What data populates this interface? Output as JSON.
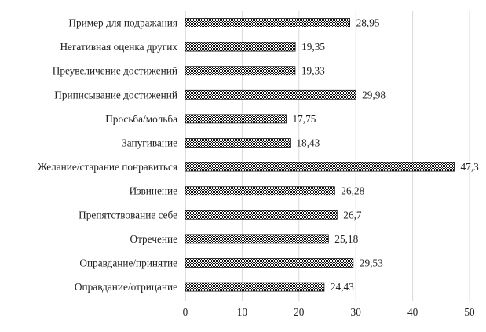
{
  "chart_data": {
    "type": "bar",
    "orientation": "horizontal",
    "categories": [
      "Пример для подражания",
      "Негативная оценка других",
      "Преувеличение достижений",
      "Приписывание достижений",
      "Просьба/мольба",
      "Запугивание",
      "Желание/старание понравиться",
      "Извинение",
      "Препятствование себе",
      "Отречение",
      "Оправдание/принятие",
      "Оправдание/отрицание"
    ],
    "values": [
      28.95,
      19.35,
      19.33,
      29.98,
      17.75,
      18.43,
      47.3,
      26.28,
      26.7,
      25.18,
      29.53,
      24.43
    ],
    "value_labels": [
      "28,95",
      "19,35",
      "19,33",
      "29,98",
      "17,75",
      "18,43",
      "47,3",
      "26,28",
      "26,7",
      "25,18",
      "29,53",
      "24,43"
    ],
    "x_ticks": [
      0,
      10,
      20,
      30,
      40,
      50
    ],
    "tick_labels": [
      "0",
      "10",
      "20",
      "30",
      "40",
      "50"
    ],
    "xlim": [
      0,
      50
    ],
    "grid": "vertical",
    "title": "",
    "xlabel": "",
    "ylabel": "",
    "bar_fill": "checkered dark pattern"
  },
  "colors": {
    "bar_dark": "#111111",
    "bar_light": "#ffffff",
    "grid": "#d9d9d9",
    "axis": "#bfbfbf",
    "text": "#222222"
  }
}
